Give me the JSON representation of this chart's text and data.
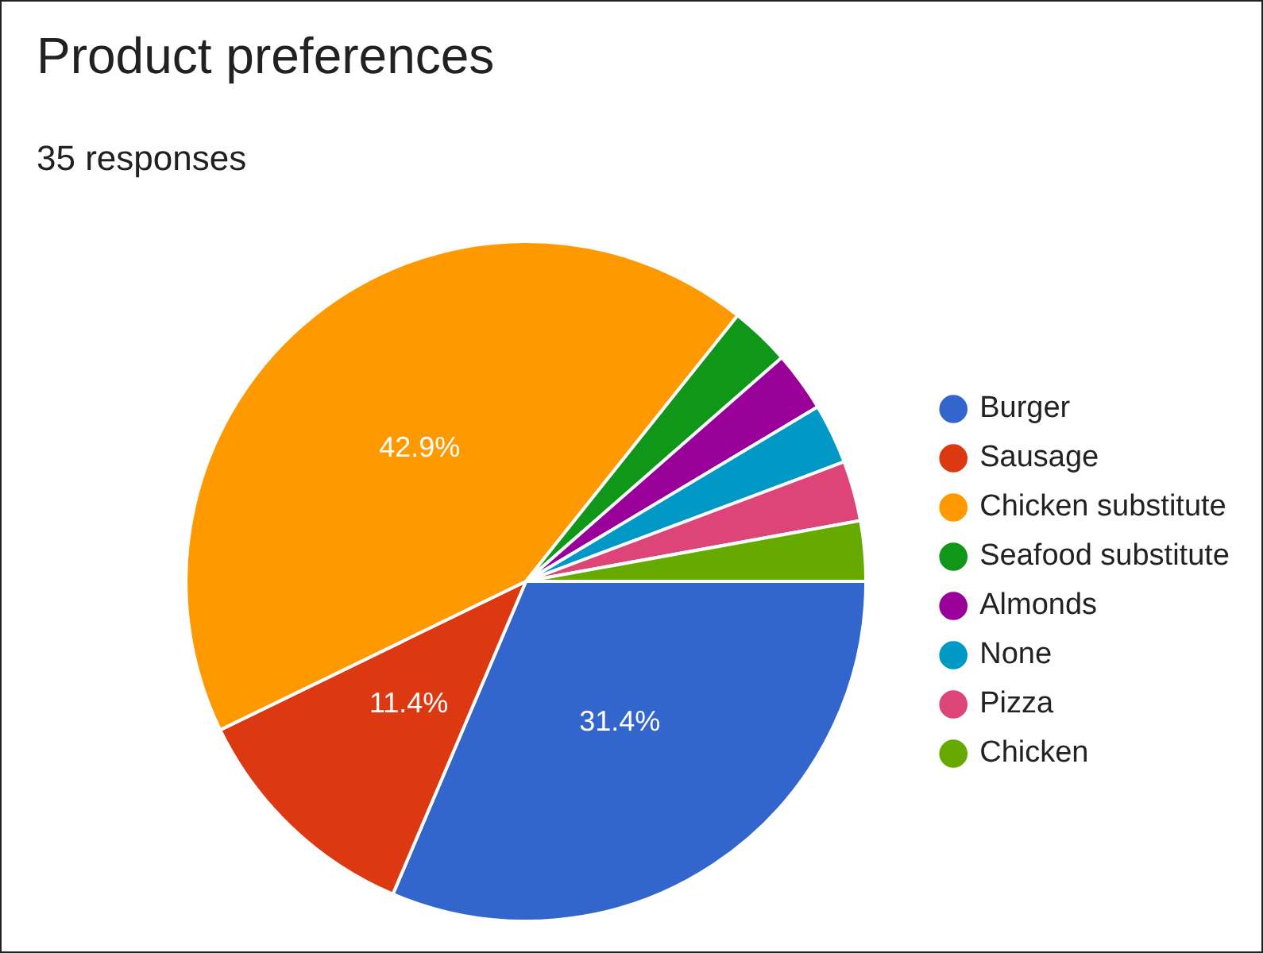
{
  "chart_data": {
    "type": "pie",
    "title": "Product preferences",
    "subtitle": "35 responses",
    "categories": [
      "Burger",
      "Sausage",
      "Chicken substitute",
      "Seafood substitute",
      "Almonds",
      "None",
      "Pizza",
      "Chicken"
    ],
    "values": [
      31.4,
      11.4,
      42.9,
      2.86,
      2.86,
      2.86,
      2.86,
      2.86
    ],
    "value_labels": [
      "31.4%",
      "11.4%",
      "42.9%",
      null,
      null,
      null,
      null,
      null
    ],
    "colors": [
      "#3366cc",
      "#dc3912",
      "#ff9900",
      "#109618",
      "#990099",
      "#0099c6",
      "#dd4477",
      "#66aa00"
    ],
    "legend": "right"
  }
}
